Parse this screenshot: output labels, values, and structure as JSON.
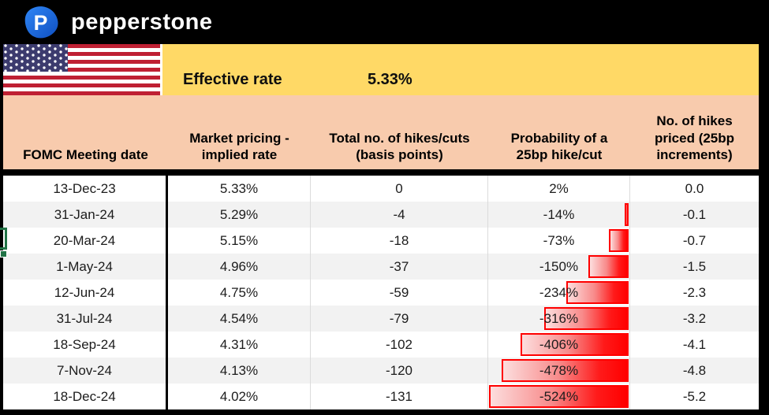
{
  "brand": {
    "wordmark": "pepperstone",
    "logo_letter": "P",
    "logo_blue": "#1E6FE0"
  },
  "banner": {
    "flag": "us-flag",
    "effective_rate_label": "Effective rate",
    "effective_rate_value": "5.33%"
  },
  "table": {
    "columns": [
      {
        "key": "date",
        "label": "FOMC Meeting date"
      },
      {
        "key": "implied_rate",
        "label": "Market pricing - implied rate"
      },
      {
        "key": "hikes_cuts_bp",
        "label": "Total no. of hikes/cuts (basis points)"
      },
      {
        "key": "probability",
        "label": "Probability of a 25bp hike/cut"
      },
      {
        "key": "hikes_priced",
        "label": "No. of hikes priced (25bp increments)"
      }
    ],
    "rows": [
      {
        "date": "13-Dec-23",
        "implied_rate": "5.33%",
        "hikes_cuts_bp": "0",
        "probability": "2%",
        "probability_value": 2,
        "hikes_priced": "0.0"
      },
      {
        "date": "31-Jan-24",
        "implied_rate": "5.29%",
        "hikes_cuts_bp": "-4",
        "probability": "-14%",
        "probability_value": -14,
        "hikes_priced": "-0.1"
      },
      {
        "date": "20-Mar-24",
        "implied_rate": "5.15%",
        "hikes_cuts_bp": "-18",
        "probability": "-73%",
        "probability_value": -73,
        "hikes_priced": "-0.7"
      },
      {
        "date": "1-May-24",
        "implied_rate": "4.96%",
        "hikes_cuts_bp": "-37",
        "probability": "-150%",
        "probability_value": -150,
        "hikes_priced": "-1.5"
      },
      {
        "date": "12-Jun-24",
        "implied_rate": "4.75%",
        "hikes_cuts_bp": "-59",
        "probability": "-234%",
        "probability_value": -234,
        "hikes_priced": "-2.3"
      },
      {
        "date": "31-Jul-24",
        "implied_rate": "4.54%",
        "hikes_cuts_bp": "-79",
        "probability": "-316%",
        "probability_value": -316,
        "hikes_priced": "-3.2"
      },
      {
        "date": "18-Sep-24",
        "implied_rate": "4.31%",
        "hikes_cuts_bp": "-102",
        "probability": "-406%",
        "probability_value": -406,
        "hikes_priced": "-4.1"
      },
      {
        "date": "7-Nov-24",
        "implied_rate": "4.13%",
        "hikes_cuts_bp": "-120",
        "probability": "-478%",
        "probability_value": -478,
        "hikes_priced": "-4.8"
      },
      {
        "date": "18-Dec-24",
        "implied_rate": "4.02%",
        "hikes_cuts_bp": "-131",
        "probability": "-524%",
        "probability_value": -524,
        "hikes_priced": "-5.2"
      }
    ],
    "data_bar": {
      "max_abs_value": 524,
      "color": "#FF0000"
    }
  },
  "colors": {
    "band_yellow": "#FFD966",
    "header_peach": "#F8CBAD",
    "row_alt_gray": "#F2F2F2",
    "bar_red": "#FF0000",
    "selection_green": "#217346"
  }
}
